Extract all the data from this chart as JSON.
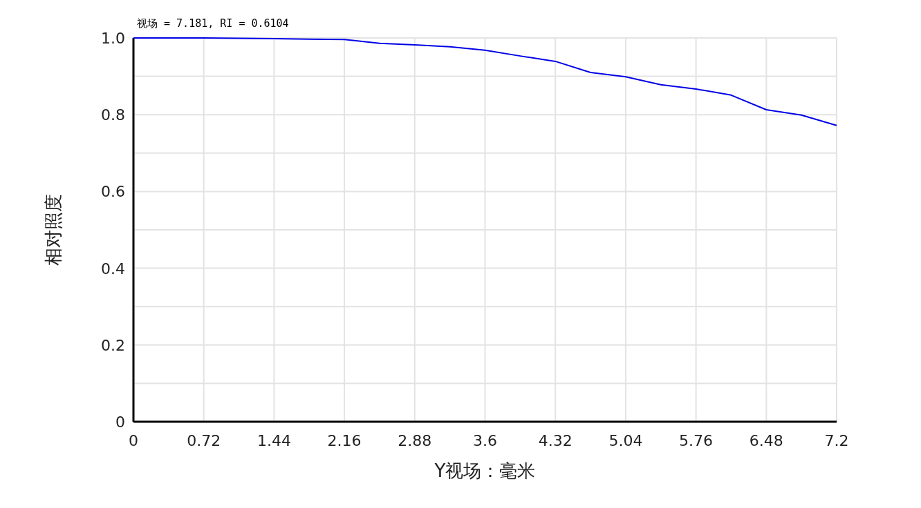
{
  "chart_data": {
    "type": "line",
    "title": "视场 = 7.181, RI = 0.6104",
    "xlabel": "Y视场：毫米",
    "ylabel": "相对照度",
    "x": [
      0,
      0.36,
      0.72,
      1.08,
      1.44,
      1.8,
      2.16,
      2.52,
      2.88,
      3.24,
      3.6,
      3.96,
      4.32,
      4.68,
      5.04,
      5.4,
      5.76,
      6.12,
      6.48,
      6.84,
      7.2
    ],
    "series": [
      {
        "color": "#0000e6",
        "values": [
          1.0,
          1.0,
          1.0,
          0.999,
          0.998,
          0.997,
          0.996,
          0.986,
          0.982,
          0.977,
          0.968,
          0.953,
          0.939,
          0.91,
          0.899,
          0.878,
          0.867,
          0.851,
          0.813,
          0.799,
          0.772
        ]
      }
    ],
    "xlim": [
      0,
      7.2
    ],
    "ylim": [
      0,
      1
    ],
    "xticks": [
      0,
      0.72,
      1.44,
      2.16,
      2.88,
      3.6,
      4.32,
      5.04,
      5.76,
      6.48,
      7.2
    ],
    "yticks": [
      0,
      {
        "value": 0.1,
        "label": null
      },
      0.2,
      {
        "value": 0.3,
        "label": null
      },
      0.4,
      {
        "value": 0.5,
        "label": null
      },
      0.6,
      {
        "value": 0.7,
        "label": null
      },
      0.8,
      {
        "value": 0.9,
        "label": null
      },
      {
        "value": 1,
        "label": "1.0"
      }
    ],
    "grid": true
  }
}
